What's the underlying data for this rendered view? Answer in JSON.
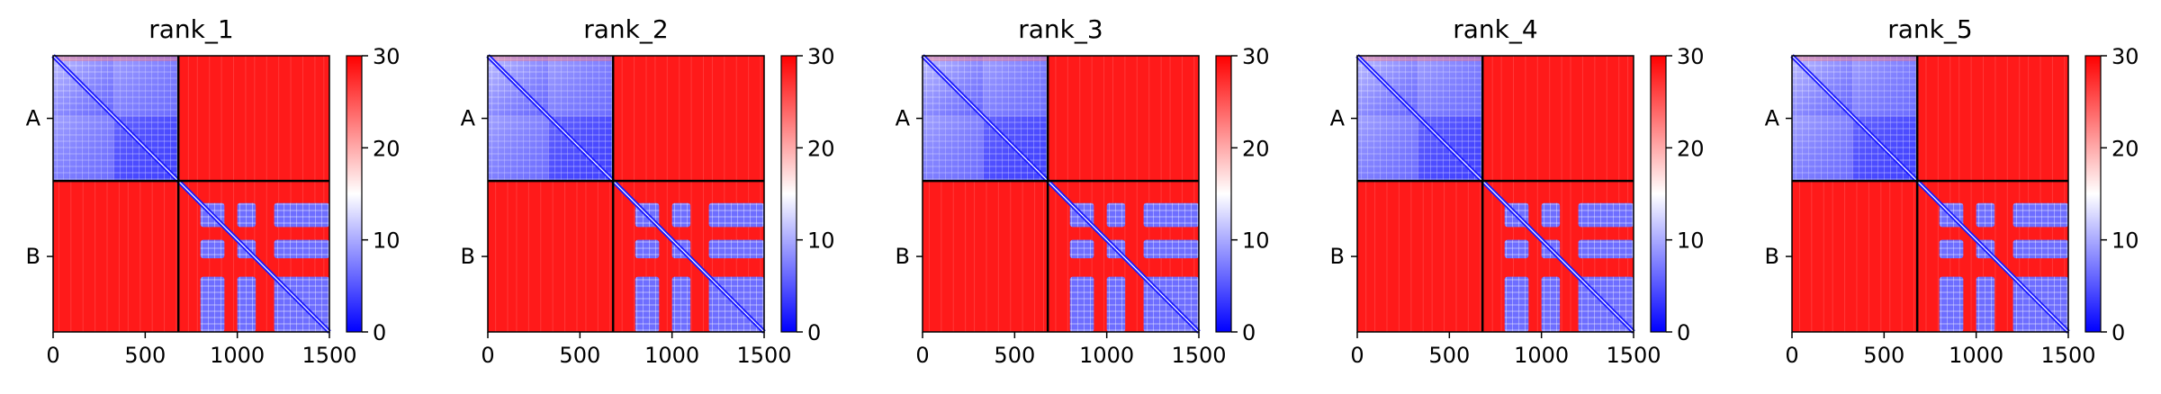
{
  "chart_data": {
    "type": "heatmap",
    "colorbar": {
      "min": 0,
      "max": 30,
      "ticks": [
        "0",
        "10",
        "20",
        "30"
      ],
      "colors": [
        "#0000ff",
        "#ffffff",
        "#ff0000"
      ]
    },
    "x_ticks": [
      {
        "value": 0,
        "label": "0"
      },
      {
        "value": 500,
        "label": "500"
      },
      {
        "value": 1000,
        "label": "1000"
      },
      {
        "value": 1500,
        "label": "1500"
      }
    ],
    "x_range": [
      0,
      1500
    ],
    "chain_boundary": 680,
    "chains": [
      {
        "label": "A",
        "start": 0,
        "end": 680
      },
      {
        "label": "B",
        "start": 680,
        "end": 1500
      }
    ],
    "panels": [
      {
        "title": "rank_1"
      },
      {
        "title": "rank_2"
      },
      {
        "title": "rank_3"
      },
      {
        "title": "rank_4"
      },
      {
        "title": "rank_5"
      }
    ]
  }
}
